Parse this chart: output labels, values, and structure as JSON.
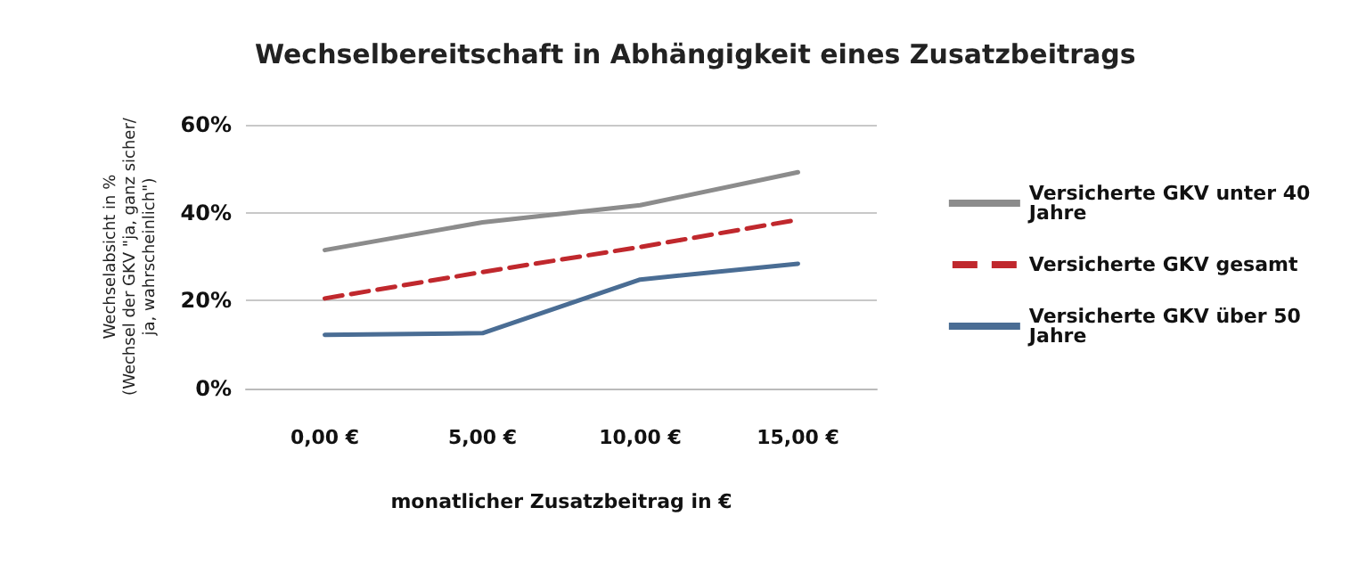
{
  "chart_data": {
    "type": "line",
    "title": "Wechselbereitschaft in Abhängigkeit eines Zusatzbeitrags",
    "xlabel": "monatlicher Zusatzbeitrag in €",
    "ylabel": "Wechselabsicht in %\n(Wechsel der GKV \"ja, ganz sicher/\nja, wahrscheinlich\")",
    "categories": [
      "0,00 €",
      "5,00 €",
      "10,00 €",
      "15,00 €"
    ],
    "series": [
      {
        "name": "Versicherte GKV unter 40 Jahre",
        "color": "#8c8c8c",
        "values": [
          31.5,
          37.8,
          41.7,
          49.2
        ]
      },
      {
        "name": "Versicherte GKV gesamt",
        "color": "#c0282d",
        "values": [
          20.5,
          26.5,
          32.2,
          38.4
        ],
        "line_style": "dashed"
      },
      {
        "name": "Versicherte GKV über 50 Jahre",
        "color": "#4a6d94",
        "values": [
          12.2,
          12.6,
          24.8,
          28.4
        ]
      }
    ],
    "ylim": [
      0,
      60
    ],
    "yticks": [
      {
        "value": 0,
        "label": "0%"
      },
      {
        "value": 20,
        "label": "20%"
      },
      {
        "value": 40,
        "label": "40%"
      },
      {
        "value": 60,
        "label": "60%"
      }
    ],
    "grid": "y",
    "legend": "right",
    "marker": "none"
  }
}
